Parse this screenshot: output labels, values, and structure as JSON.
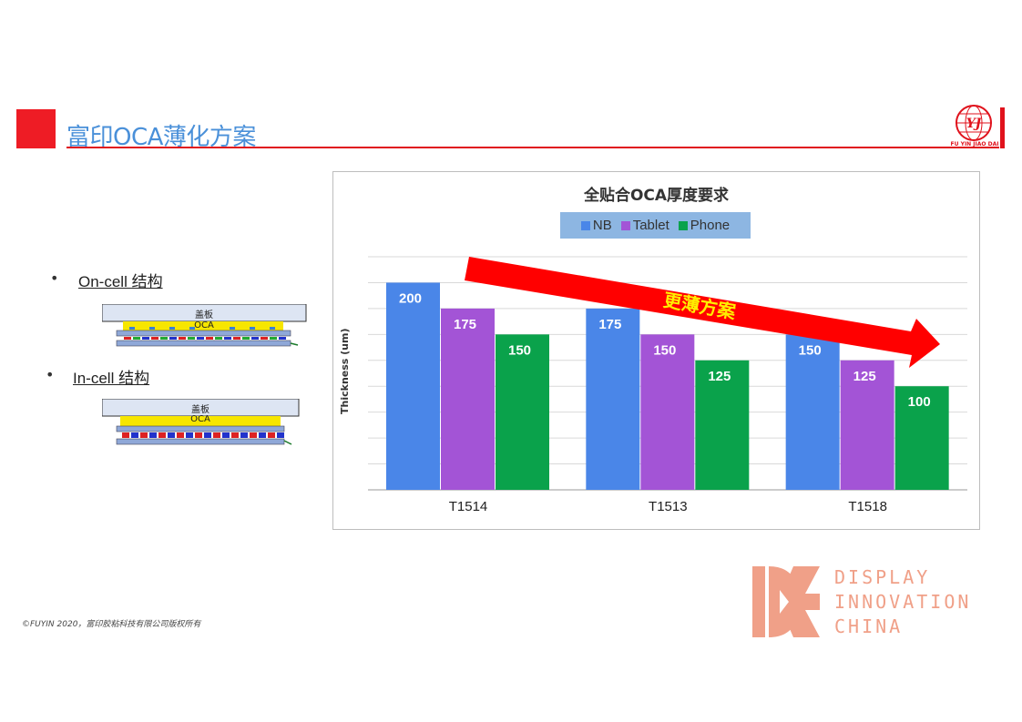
{
  "header": {
    "title": "富印OCA薄化方案",
    "logo_text": "FU YIN JIAO DAI",
    "logo_monogram": "YJ"
  },
  "structures": [
    {
      "label": "On-cell 结构",
      "cover": "盖板",
      "oca": "OCA"
    },
    {
      "label": "In-cell 结构",
      "cover": "盖板",
      "oca": "OCA"
    }
  ],
  "chart_data": {
    "type": "bar",
    "title": "全贴合OCA厚度要求",
    "ylabel": "Thickness (um)",
    "xlabel": "",
    "categories": [
      "T1514",
      "T1513",
      "T1518"
    ],
    "series": [
      {
        "name": "NB",
        "values": [
          200,
          175,
          150
        ],
        "color": "#4a86e8"
      },
      {
        "name": "Tablet",
        "values": [
          175,
          150,
          125
        ],
        "color": "#a354d6"
      },
      {
        "name": "Phone",
        "values": [
          150,
          125,
          100
        ],
        "color": "#0aa24b"
      }
    ],
    "ylim": [
      0,
      225
    ],
    "grid": true,
    "legend_position": "top",
    "annotation": "更薄方案"
  },
  "footer": {
    "copyright": "©FUYIN 2020，富印胶粘科技有限公司版权所有",
    "brand_lines": [
      "DISPLAY",
      "INNOVATION",
      "CHINA"
    ]
  },
  "colors": {
    "accent_red": "#e0121c",
    "title_blue": "#4a90d9",
    "brand_salmon": "#f0a088"
  }
}
